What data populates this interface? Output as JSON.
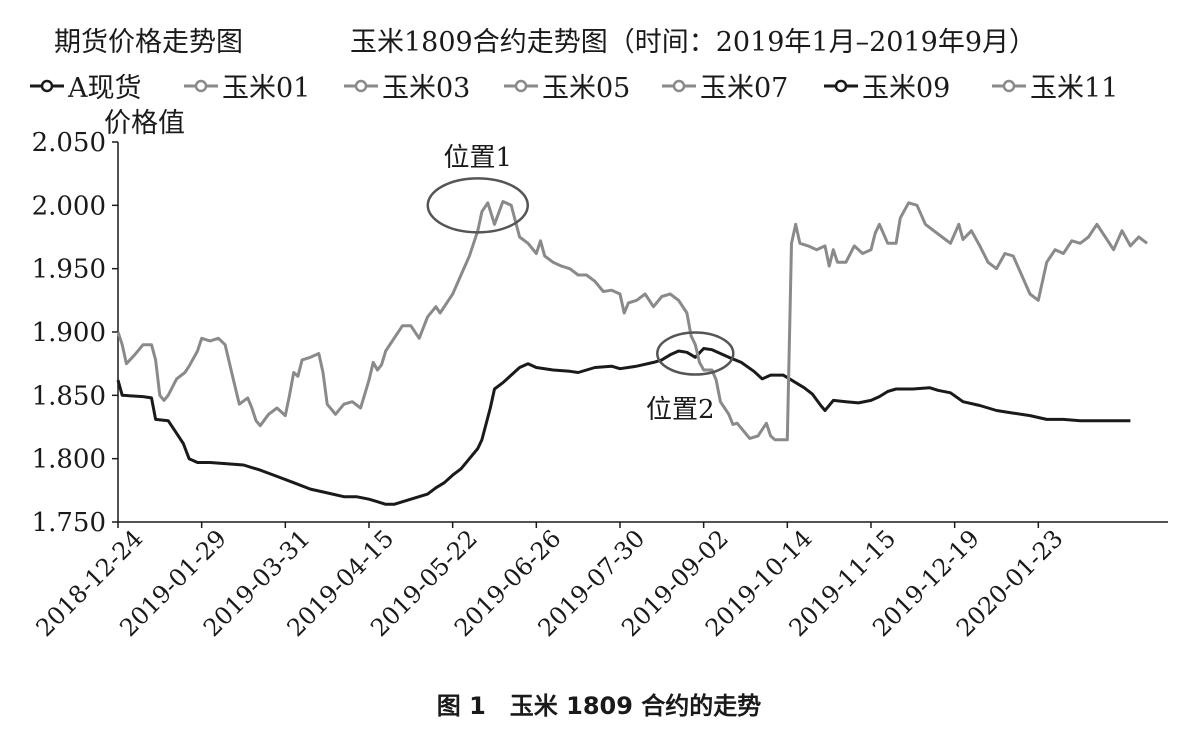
{
  "chart_data": {
    "type": "line",
    "header_left": "期货价格走势图",
    "title": "玉米1809合约走势图（时间：2019年1月–2019年9月）",
    "ylabel": "价格值",
    "caption": "图 1　玉米 1809 合约的走势",
    "ylim": [
      1.75,
      2.05
    ],
    "yticks": [
      "1.750",
      "1.800",
      "1.850",
      "1.900",
      "1.950",
      "2.000",
      "2.050"
    ],
    "categories": [
      "2018-12-24",
      "2019-01-29",
      "2019-03-31",
      "2019-04-15",
      "2019-05-22",
      "2019-06-26",
      "2019-07-30",
      "2019-09-02",
      "2019-10-14",
      "2019-11-15",
      "2019-12-19",
      "2020-01-23"
    ],
    "legend": [
      {
        "name": "A现货",
        "color": "#1a1a1a"
      },
      {
        "name": "玉米01",
        "color": "#8a8a8a"
      },
      {
        "name": "玉米03",
        "color": "#8a8a8a"
      },
      {
        "name": "玉米05",
        "color": "#8a8a8a"
      },
      {
        "name": "玉米07",
        "color": "#8a8a8a"
      },
      {
        "name": "玉米09",
        "color": "#1a1a1a"
      },
      {
        "name": "玉米11",
        "color": "#8a8a8a"
      }
    ],
    "annotations": [
      {
        "label": "位置1",
        "x": 4.3,
        "y": 2.0
      },
      {
        "label": "位置2",
        "x": 6.9,
        "y": 1.883
      }
    ],
    "series": [
      {
        "name": "玉米09",
        "color": "#1a1a1a",
        "points": [
          [
            0,
            1.862
          ],
          [
            0.05,
            1.85
          ],
          [
            0.3,
            1.849
          ],
          [
            0.4,
            1.848
          ],
          [
            0.45,
            1.831
          ],
          [
            0.6,
            1.83
          ],
          [
            0.7,
            1.82
          ],
          [
            0.78,
            1.812
          ],
          [
            0.85,
            1.8
          ],
          [
            0.95,
            1.797
          ],
          [
            1.1,
            1.797
          ],
          [
            1.3,
            1.796
          ],
          [
            1.5,
            1.795
          ],
          [
            1.7,
            1.791
          ],
          [
            1.9,
            1.786
          ],
          [
            2.1,
            1.781
          ],
          [
            2.3,
            1.776
          ],
          [
            2.5,
            1.773
          ],
          [
            2.7,
            1.77
          ],
          [
            2.85,
            1.77
          ],
          [
            3.0,
            1.768
          ],
          [
            3.1,
            1.766
          ],
          [
            3.2,
            1.764
          ],
          [
            3.3,
            1.764
          ],
          [
            3.5,
            1.768
          ],
          [
            3.7,
            1.772
          ],
          [
            3.8,
            1.777
          ],
          [
            3.9,
            1.781
          ],
          [
            4.0,
            1.787
          ],
          [
            4.1,
            1.792
          ],
          [
            4.2,
            1.8
          ],
          [
            4.3,
            1.808
          ],
          [
            4.35,
            1.815
          ],
          [
            4.45,
            1.84
          ],
          [
            4.5,
            1.855
          ],
          [
            4.6,
            1.86
          ],
          [
            4.7,
            1.866
          ],
          [
            4.8,
            1.872
          ],
          [
            4.9,
            1.875
          ],
          [
            5.0,
            1.872
          ],
          [
            5.2,
            1.87
          ],
          [
            5.4,
            1.869
          ],
          [
            5.5,
            1.868
          ],
          [
            5.7,
            1.872
          ],
          [
            5.9,
            1.873
          ],
          [
            6.0,
            1.871
          ],
          [
            6.2,
            1.873
          ],
          [
            6.4,
            1.876
          ],
          [
            6.5,
            1.878
          ],
          [
            6.6,
            1.882
          ],
          [
            6.7,
            1.885
          ],
          [
            6.8,
            1.884
          ],
          [
            6.9,
            1.88
          ],
          [
            7.0,
            1.887
          ],
          [
            7.1,
            1.886
          ],
          [
            7.3,
            1.88
          ],
          [
            7.45,
            1.876
          ],
          [
            7.6,
            1.869
          ],
          [
            7.7,
            1.863
          ],
          [
            7.8,
            1.866
          ],
          [
            7.95,
            1.866
          ],
          [
            8.05,
            1.862
          ],
          [
            8.2,
            1.856
          ],
          [
            8.3,
            1.851
          ],
          [
            8.4,
            1.842
          ],
          [
            8.45,
            1.838
          ],
          [
            8.55,
            1.846
          ],
          [
            8.7,
            1.845
          ],
          [
            8.85,
            1.844
          ],
          [
            9.0,
            1.846
          ],
          [
            9.1,
            1.849
          ],
          [
            9.2,
            1.853
          ],
          [
            9.3,
            1.855
          ],
          [
            9.5,
            1.855
          ],
          [
            9.7,
            1.856
          ],
          [
            9.8,
            1.854
          ],
          [
            9.95,
            1.852
          ],
          [
            10.1,
            1.845
          ],
          [
            10.3,
            1.842
          ],
          [
            10.5,
            1.838
          ],
          [
            10.7,
            1.836
          ],
          [
            10.9,
            1.834
          ],
          [
            11.1,
            1.831
          ],
          [
            11.3,
            1.831
          ],
          [
            11.5,
            1.83
          ],
          [
            11.8,
            1.83
          ],
          [
            12.1,
            1.83
          ]
        ]
      },
      {
        "name": "玉米11",
        "color": "#8a8a8a",
        "points": [
          [
            0,
            1.9
          ],
          [
            0.05,
            1.89
          ],
          [
            0.1,
            1.875
          ],
          [
            0.2,
            1.882
          ],
          [
            0.3,
            1.89
          ],
          [
            0.4,
            1.89
          ],
          [
            0.45,
            1.878
          ],
          [
            0.5,
            1.85
          ],
          [
            0.55,
            1.846
          ],
          [
            0.6,
            1.85
          ],
          [
            0.7,
            1.863
          ],
          [
            0.8,
            1.868
          ],
          [
            0.85,
            1.873
          ],
          [
            0.95,
            1.885
          ],
          [
            1.0,
            1.895
          ],
          [
            1.1,
            1.893
          ],
          [
            1.2,
            1.895
          ],
          [
            1.28,
            1.89
          ],
          [
            1.38,
            1.862
          ],
          [
            1.45,
            1.843
          ],
          [
            1.55,
            1.848
          ],
          [
            1.6,
            1.84
          ],
          [
            1.65,
            1.83
          ],
          [
            1.7,
            1.826
          ],
          [
            1.8,
            1.835
          ],
          [
            1.9,
            1.84
          ],
          [
            2.0,
            1.834
          ],
          [
            2.05,
            1.85
          ],
          [
            2.1,
            1.868
          ],
          [
            2.15,
            1.865
          ],
          [
            2.2,
            1.878
          ],
          [
            2.3,
            1.88
          ],
          [
            2.4,
            1.883
          ],
          [
            2.45,
            1.868
          ],
          [
            2.5,
            1.843
          ],
          [
            2.6,
            1.835
          ],
          [
            2.7,
            1.843
          ],
          [
            2.8,
            1.845
          ],
          [
            2.9,
            1.84
          ],
          [
            3.0,
            1.862
          ],
          [
            3.05,
            1.876
          ],
          [
            3.1,
            1.87
          ],
          [
            3.15,
            1.874
          ],
          [
            3.2,
            1.885
          ],
          [
            3.3,
            1.895
          ],
          [
            3.4,
            1.905
          ],
          [
            3.5,
            1.905
          ],
          [
            3.6,
            1.895
          ],
          [
            3.7,
            1.912
          ],
          [
            3.8,
            1.92
          ],
          [
            3.85,
            1.915
          ],
          [
            3.95,
            1.925
          ],
          [
            4.0,
            1.93
          ],
          [
            4.1,
            1.945
          ],
          [
            4.2,
            1.96
          ],
          [
            4.3,
            1.98
          ],
          [
            4.35,
            1.995
          ],
          [
            4.42,
            2.002
          ],
          [
            4.5,
            1.985
          ],
          [
            4.6,
            2.003
          ],
          [
            4.7,
            2.0
          ],
          [
            4.8,
            1.975
          ],
          [
            4.9,
            1.97
          ],
          [
            5.0,
            1.962
          ],
          [
            5.05,
            1.972
          ],
          [
            5.1,
            1.96
          ],
          [
            5.2,
            1.955
          ],
          [
            5.3,
            1.952
          ],
          [
            5.4,
            1.95
          ],
          [
            5.5,
            1.945
          ],
          [
            5.6,
            1.945
          ],
          [
            5.7,
            1.94
          ],
          [
            5.8,
            1.932
          ],
          [
            5.9,
            1.933
          ],
          [
            6.0,
            1.93
          ],
          [
            6.05,
            1.915
          ],
          [
            6.1,
            1.923
          ],
          [
            6.2,
            1.925
          ],
          [
            6.3,
            1.93
          ],
          [
            6.4,
            1.92
          ],
          [
            6.5,
            1.928
          ],
          [
            6.6,
            1.93
          ],
          [
            6.7,
            1.925
          ],
          [
            6.8,
            1.915
          ],
          [
            6.85,
            1.897
          ],
          [
            6.9,
            1.89
          ],
          [
            6.95,
            1.876
          ],
          [
            7.0,
            1.87
          ],
          [
            7.05,
            1.87
          ],
          [
            7.1,
            1.87
          ],
          [
            7.15,
            1.862
          ],
          [
            7.2,
            1.845
          ],
          [
            7.25,
            1.84
          ],
          [
            7.3,
            1.835
          ],
          [
            7.35,
            1.827
          ],
          [
            7.4,
            1.828
          ],
          [
            7.5,
            1.82
          ],
          [
            7.55,
            1.816
          ],
          [
            7.65,
            1.818
          ],
          [
            7.75,
            1.828
          ],
          [
            7.8,
            1.818
          ],
          [
            7.85,
            1.815
          ],
          [
            7.95,
            1.815
          ],
          [
            8.0,
            1.815
          ],
          [
            8.05,
            1.97
          ],
          [
            8.1,
            1.985
          ],
          [
            8.15,
            1.97
          ],
          [
            8.25,
            1.968
          ],
          [
            8.35,
            1.965
          ],
          [
            8.45,
            1.968
          ],
          [
            8.5,
            1.952
          ],
          [
            8.55,
            1.965
          ],
          [
            8.6,
            1.955
          ],
          [
            8.7,
            1.955
          ],
          [
            8.8,
            1.968
          ],
          [
            8.9,
            1.962
          ],
          [
            9.0,
            1.965
          ],
          [
            9.05,
            1.978
          ],
          [
            9.1,
            1.985
          ],
          [
            9.2,
            1.97
          ],
          [
            9.3,
            1.97
          ],
          [
            9.35,
            1.99
          ],
          [
            9.45,
            2.002
          ],
          [
            9.55,
            2.0
          ],
          [
            9.65,
            1.985
          ],
          [
            9.75,
            1.98
          ],
          [
            9.85,
            1.975
          ],
          [
            9.95,
            1.97
          ],
          [
            10.05,
            1.985
          ],
          [
            10.1,
            1.973
          ],
          [
            10.2,
            1.98
          ],
          [
            10.3,
            1.968
          ],
          [
            10.4,
            1.955
          ],
          [
            10.5,
            1.95
          ],
          [
            10.6,
            1.962
          ],
          [
            10.7,
            1.96
          ],
          [
            10.8,
            1.945
          ],
          [
            10.9,
            1.93
          ],
          [
            11.0,
            1.925
          ],
          [
            11.1,
            1.955
          ],
          [
            11.2,
            1.965
          ],
          [
            11.3,
            1.962
          ],
          [
            11.4,
            1.972
          ],
          [
            11.5,
            1.97
          ],
          [
            11.6,
            1.975
          ],
          [
            11.7,
            1.985
          ],
          [
            11.8,
            1.975
          ],
          [
            11.9,
            1.965
          ],
          [
            12.0,
            1.98
          ],
          [
            12.1,
            1.968
          ],
          [
            12.2,
            1.975
          ],
          [
            12.3,
            1.97
          ]
        ]
      }
    ]
  }
}
